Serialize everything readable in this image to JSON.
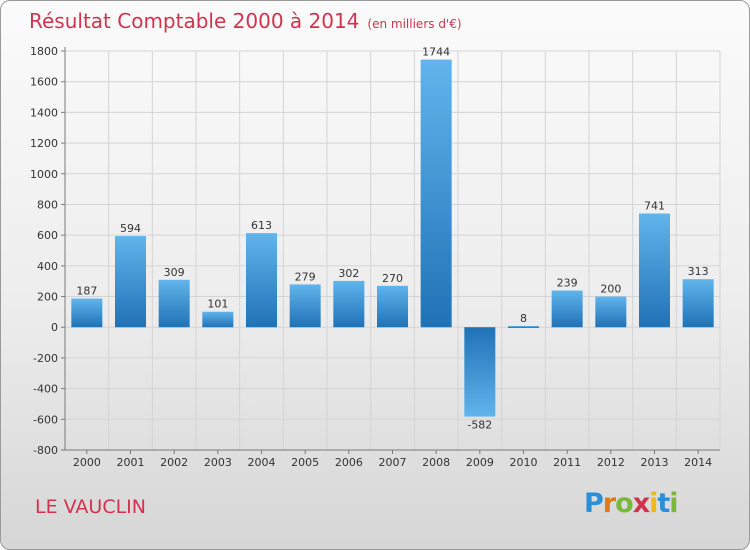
{
  "chart_data": {
    "type": "bar",
    "title": "Résultat Comptable 2000 à 2014",
    "subtitle": "(en milliers d'€)",
    "categories": [
      "2000",
      "2001",
      "2002",
      "2003",
      "2004",
      "2005",
      "2006",
      "2007",
      "2008",
      "2009",
      "2010",
      "2011",
      "2012",
      "2013",
      "2014"
    ],
    "values": [
      187,
      594,
      309,
      101,
      613,
      279,
      302,
      270,
      1744,
      -582,
      8,
      239,
      200,
      741,
      313
    ],
    "ylim": [
      -800,
      1800
    ],
    "yticks": [
      -800,
      -600,
      -400,
      -200,
      0,
      200,
      400,
      600,
      800,
      1000,
      1200,
      1400,
      1600,
      1800
    ],
    "grid": true,
    "xlabel": "",
    "ylabel": ""
  },
  "location_label": "LE VAUCLIN",
  "logo": {
    "letters": [
      "P",
      "r",
      "o",
      "x",
      "i",
      "t",
      "i"
    ],
    "colors": [
      "#2a8fd6",
      "#e07a1c",
      "#7ab83a",
      "#d2334c",
      "#f0b81e",
      "#2a8fd6",
      "#7ab83a"
    ]
  },
  "colors": {
    "title": "#d2334c",
    "bar_top": "#5eb0ea",
    "bar_bottom": "#1e72b8",
    "grid": "#d4d4d4",
    "axis": "#7a7a7a"
  }
}
